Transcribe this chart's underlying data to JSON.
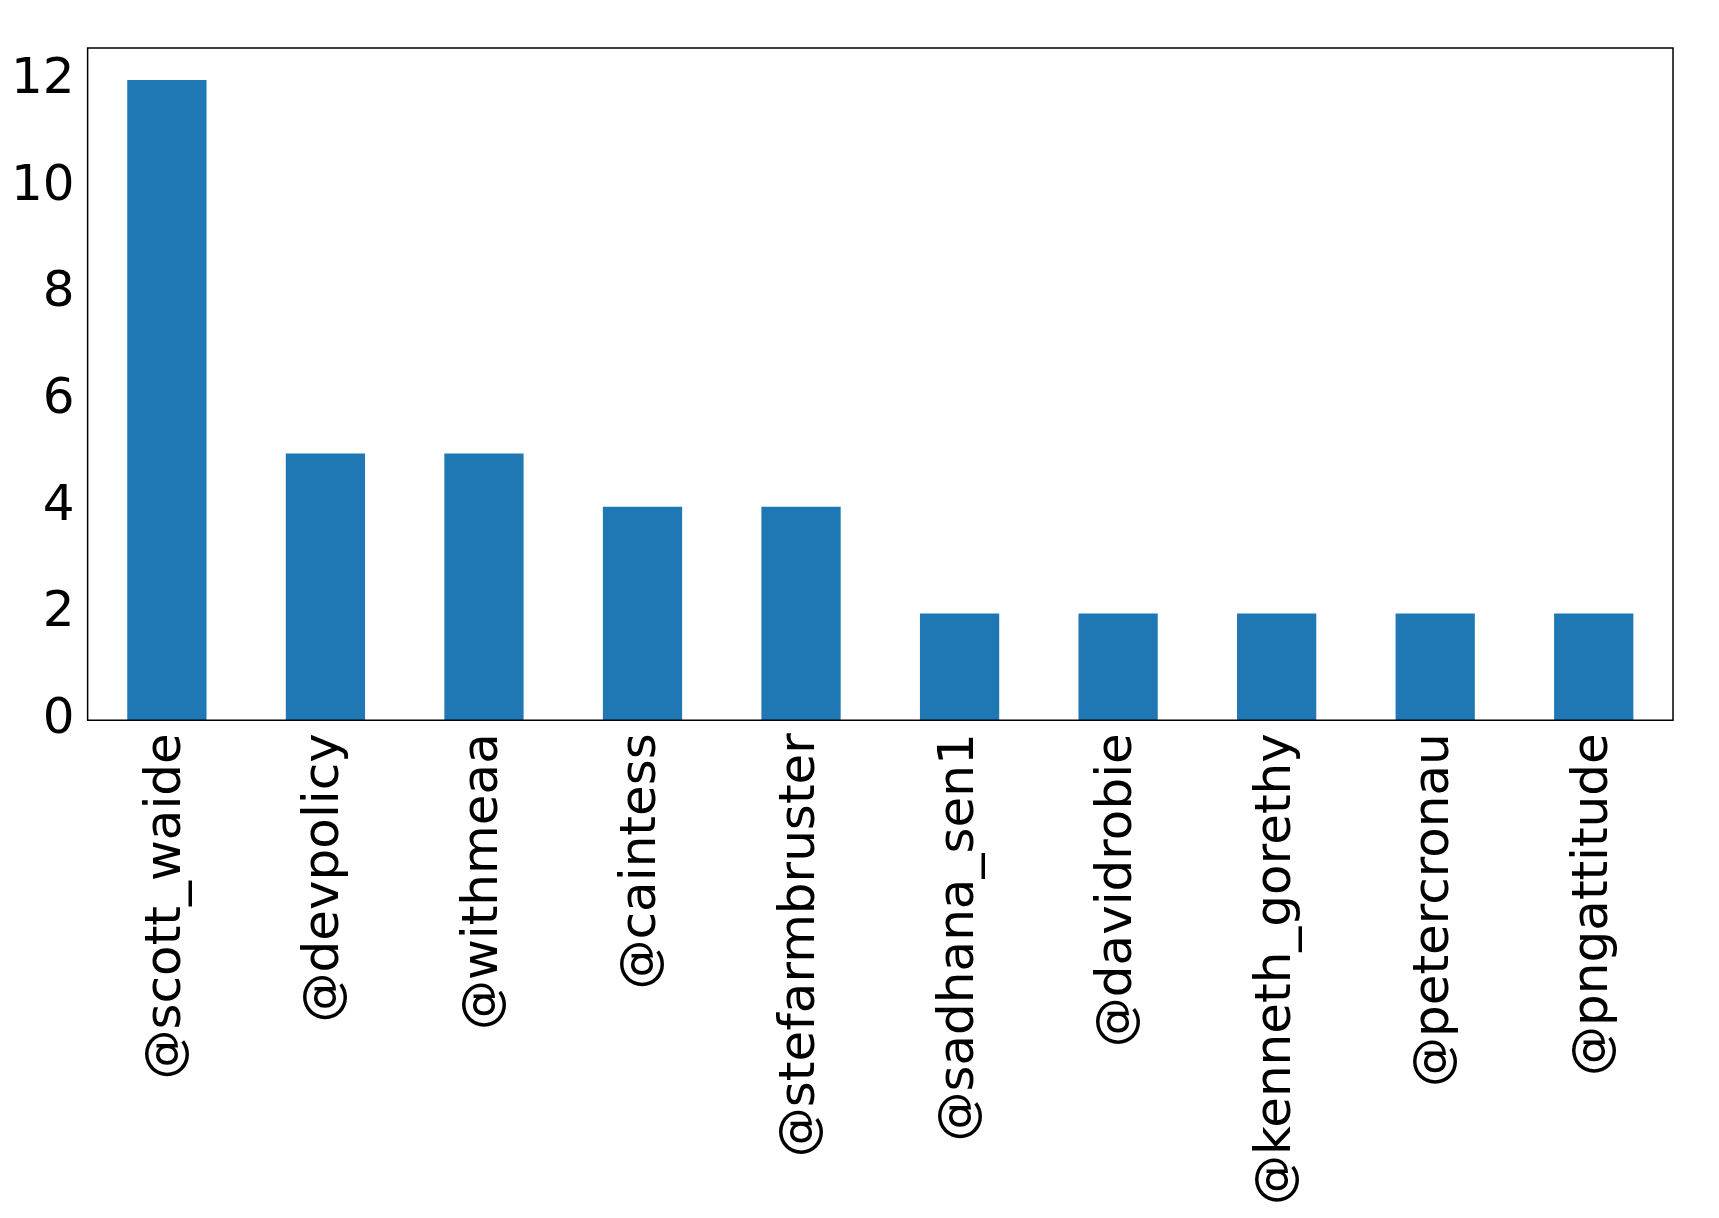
{
  "chart_data": {
    "type": "bar",
    "categories": [
      "@scott_waide",
      "@devpolicy",
      "@withmeaa",
      "@caintess",
      "@stefarmbruster",
      "@sadhana_sen1",
      "@davidrobie",
      "@kenneth_gorethy",
      "@petercronau",
      "@pngattitude"
    ],
    "values": [
      12,
      5,
      5,
      4,
      4,
      2,
      2,
      2,
      2,
      2
    ],
    "color": "#1f77b4",
    "ylim": [
      0,
      12.6
    ],
    "yticks": [
      0,
      2,
      4,
      6,
      8,
      10,
      12
    ],
    "grid": false,
    "legend": false
  }
}
